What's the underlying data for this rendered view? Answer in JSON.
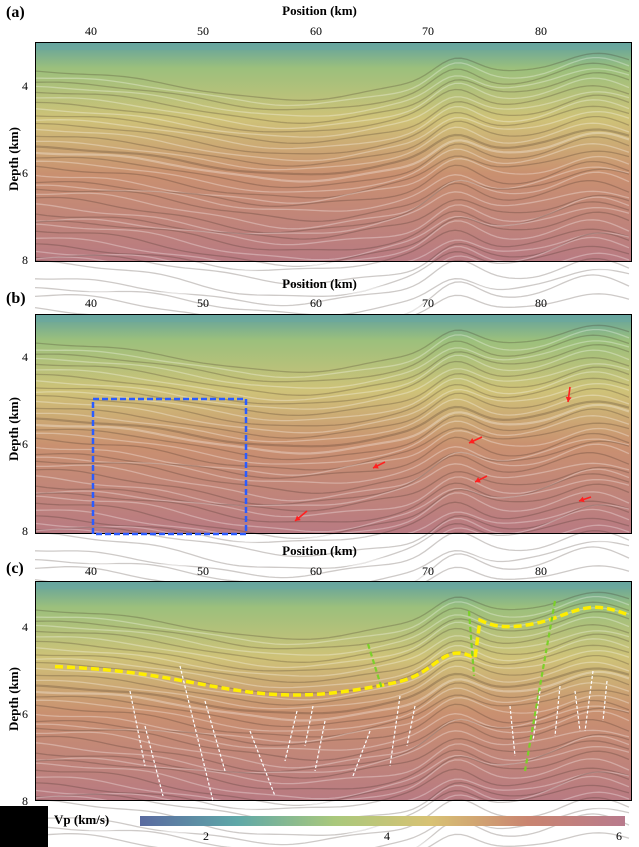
{
  "panels": [
    {
      "id": "a",
      "label": "(a)",
      "x_title": "Position (km)",
      "y_title": "Depth (km)",
      "x_ticks": [
        "40",
        "50",
        "60",
        "70",
        "80"
      ],
      "y_ticks": [
        "4",
        "6",
        "8"
      ]
    },
    {
      "id": "b",
      "label": "(b)",
      "x_title": "Position (km)",
      "y_title": "Depth (km)",
      "x_ticks": [
        "40",
        "50",
        "60",
        "70",
        "80"
      ],
      "y_ticks": [
        "4",
        "6",
        "8"
      ]
    },
    {
      "id": "c",
      "label": "(c)",
      "x_title": "Position (km)",
      "y_title": "Depth (km)",
      "x_ticks": [
        "40",
        "50",
        "60",
        "70",
        "80"
      ],
      "y_ticks": [
        "4",
        "6",
        "8"
      ]
    }
  ],
  "axes": {
    "x_range_km": [
      35,
      87
    ],
    "y_range_km": [
      3,
      8
    ]
  },
  "colorbar": {
    "title": "Vp (km/s)",
    "ticks": [
      "2",
      "4",
      "6"
    ],
    "range": [
      1.5,
      6
    ],
    "colors": [
      "#5a6aa0",
      "#5fa8a8",
      "#a9c87c",
      "#d8c274",
      "#c98470",
      "#b87a8c"
    ]
  },
  "annotation_colors": {
    "box": "#2a5cff",
    "arrows": "#ff2020",
    "horizon": "#ffee00",
    "faults_major": "#7ccf2a",
    "faults_minor": "#ffffff"
  }
}
